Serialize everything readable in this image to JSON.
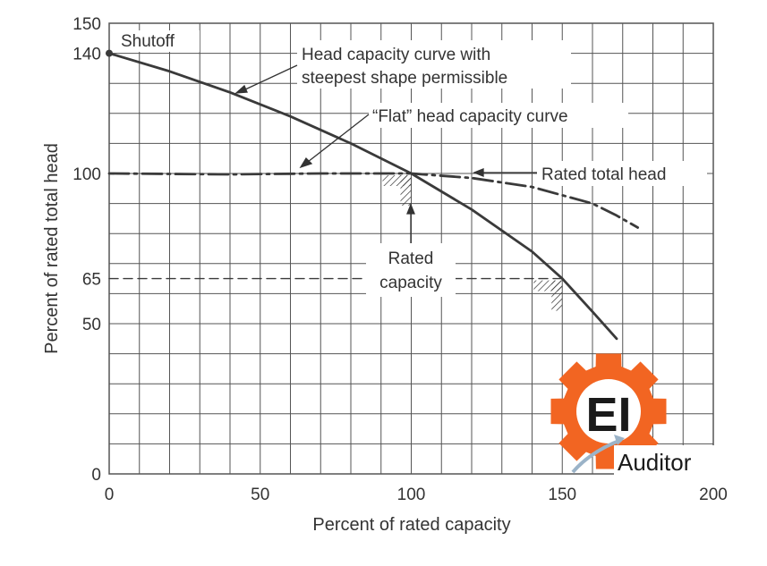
{
  "chart_data": {
    "type": "line",
    "xlabel": "Percent of rated capacity",
    "ylabel": "Percent of rated total head",
    "xlim": [
      0,
      200
    ],
    "ylim": [
      0,
      150
    ],
    "x_ticks": [
      "0",
      "50",
      "100",
      "150",
      "200"
    ],
    "y_ticks": [
      "0",
      "50",
      "65",
      "100",
      "140",
      "150"
    ],
    "grid": true,
    "series": [
      {
        "style": "solid",
        "points": [
          [
            0,
            140
          ],
          [
            20,
            134
          ],
          [
            40,
            127
          ],
          [
            60,
            119
          ],
          [
            80,
            110
          ],
          [
            100,
            100
          ],
          [
            120,
            88
          ],
          [
            140,
            74
          ],
          [
            150,
            65
          ],
          [
            160,
            54
          ],
          [
            168,
            45
          ]
        ]
      },
      {
        "style": "dash-dot",
        "points": [
          [
            0,
            100
          ],
          [
            40,
            99.7
          ],
          [
            70,
            100
          ],
          [
            100,
            100
          ],
          [
            120,
            98.5
          ],
          [
            140,
            95.5
          ],
          [
            160,
            90
          ],
          [
            168,
            86
          ],
          [
            175,
            82
          ]
        ]
      },
      {
        "style": "dashed",
        "points": [
          [
            0,
            65
          ],
          [
            150,
            65
          ]
        ]
      }
    ],
    "annotations": {
      "shutoff": "Shutoff",
      "steep_line1": "Head capacity curve with",
      "steep_line2": "steepest shape permissible",
      "flat": "“Flat” head capacity curve",
      "rated_head": "Rated total head",
      "rated_capacity_line1": "Rated",
      "rated_capacity_line2": "capacity"
    }
  },
  "watermark": {
    "logo_text": "EI",
    "brand_text": "Auditor",
    "colors": {
      "gear": "#f26522",
      "text": "#1a1a1a",
      "arrow": "#9bb3c8"
    }
  }
}
